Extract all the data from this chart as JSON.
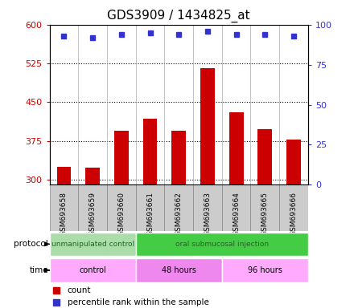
{
  "title": "GDS3909 / 1434825_at",
  "samples": [
    "GSM693658",
    "GSM693659",
    "GSM693660",
    "GSM693661",
    "GSM693662",
    "GSM693663",
    "GSM693664",
    "GSM693665",
    "GSM693666"
  ],
  "counts": [
    325,
    323,
    395,
    418,
    395,
    515,
    430,
    398,
    378
  ],
  "percentile_ranks": [
    93,
    92,
    94,
    95,
    94,
    96,
    94,
    94,
    93
  ],
  "ylim_left": [
    290,
    600
  ],
  "ylim_right": [
    0,
    100
  ],
  "yticks_left": [
    300,
    375,
    450,
    525,
    600
  ],
  "yticks_right": [
    0,
    25,
    50,
    75,
    100
  ],
  "bar_color": "#cc0000",
  "dot_color": "#3333cc",
  "left_tick_color": "#cc0000",
  "right_tick_color": "#3333cc",
  "title_fontsize": 11,
  "protocol_groups": [
    {
      "label": "unmanipulated control",
      "start": 0,
      "end": 3,
      "color": "#aaddaa"
    },
    {
      "label": "oral submucosal injection",
      "start": 3,
      "end": 9,
      "color": "#44cc44"
    }
  ],
  "time_groups": [
    {
      "label": "control",
      "start": 0,
      "end": 3,
      "color": "#ffaaff"
    },
    {
      "label": "48 hours",
      "start": 3,
      "end": 6,
      "color": "#ee88ee"
    },
    {
      "label": "96 hours",
      "start": 6,
      "end": 9,
      "color": "#ffaaff"
    }
  ],
  "legend_count_label": "count",
  "legend_percentile_label": "percentile rank within the sample",
  "protocol_label": "protocol",
  "time_label": "time",
  "sample_box_color": "#cccccc",
  "sample_box_edge": "#888888"
}
